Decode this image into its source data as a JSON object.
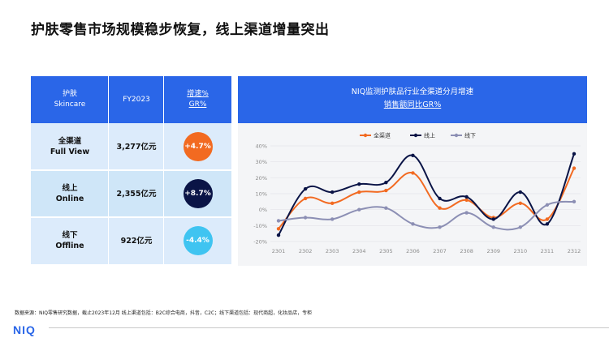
{
  "title": "护肤零售市场规模稳步恢复，线上渠道增量突出",
  "table": {
    "header": {
      "col1_line1": "护肤",
      "col1_line2": "Skincare",
      "col2": "FY2023",
      "col3_line1": "增速%",
      "col3_line2": "GR%"
    },
    "rows": [
      {
        "name_cn": "全渠道",
        "name_en": "Full View",
        "value": "3,277亿元",
        "growth": "+4.7%",
        "badge_color": "#f26a21",
        "row_bg": "#dcebfb"
      },
      {
        "name_cn": "线上",
        "name_en": "Online",
        "value": "2,355亿元",
        "growth": "+8.7%",
        "badge_color": "#0a1446",
        "row_bg": "#cfe6f8"
      },
      {
        "name_cn": "线下",
        "name_en": "Offline",
        "value": "922亿元",
        "growth": "-4.4%",
        "badge_color": "#3fc4f1",
        "row_bg": "#dcebfb"
      }
    ]
  },
  "chart_header": {
    "line1": "NIQ监测护肤品行业全渠道分月增速",
    "line2": "销售额同比GR%"
  },
  "chart_data": {
    "type": "line",
    "categories": [
      "2301",
      "2302",
      "2303",
      "2304",
      "2305",
      "2306",
      "2307",
      "2308",
      "2309",
      "2310",
      "2311",
      "2312"
    ],
    "series": [
      {
        "name": "全渠道",
        "color": "#f26a21",
        "values": [
          -12,
          7,
          4,
          11,
          12,
          23,
          1,
          6,
          -5,
          4,
          -6,
          26
        ]
      },
      {
        "name": "线上",
        "color": "#0a1446",
        "values": [
          -16,
          13,
          11,
          16,
          17,
          34,
          7,
          8,
          -6,
          11,
          -9,
          35
        ]
      },
      {
        "name": "线下",
        "color": "#8c8fb4",
        "values": [
          -7,
          -5,
          -6,
          0,
          1,
          -9,
          -11,
          -2,
          -11,
          -11,
          3,
          5
        ]
      }
    ],
    "y_ticks": [
      "-20%",
      "-10%",
      "0%",
      "10%",
      "20%",
      "30%",
      "40%"
    ],
    "ylim": [
      -20,
      40
    ],
    "legend_position": "top",
    "grid": true
  },
  "footnote": "数据来源：NIQ零售研究数据，截止2023年12月  线上渠道包括：B2C综合电商，抖音，C2C；线下渠道包括：现代商超，化妆品店，专柜",
  "logo": "NIQ"
}
